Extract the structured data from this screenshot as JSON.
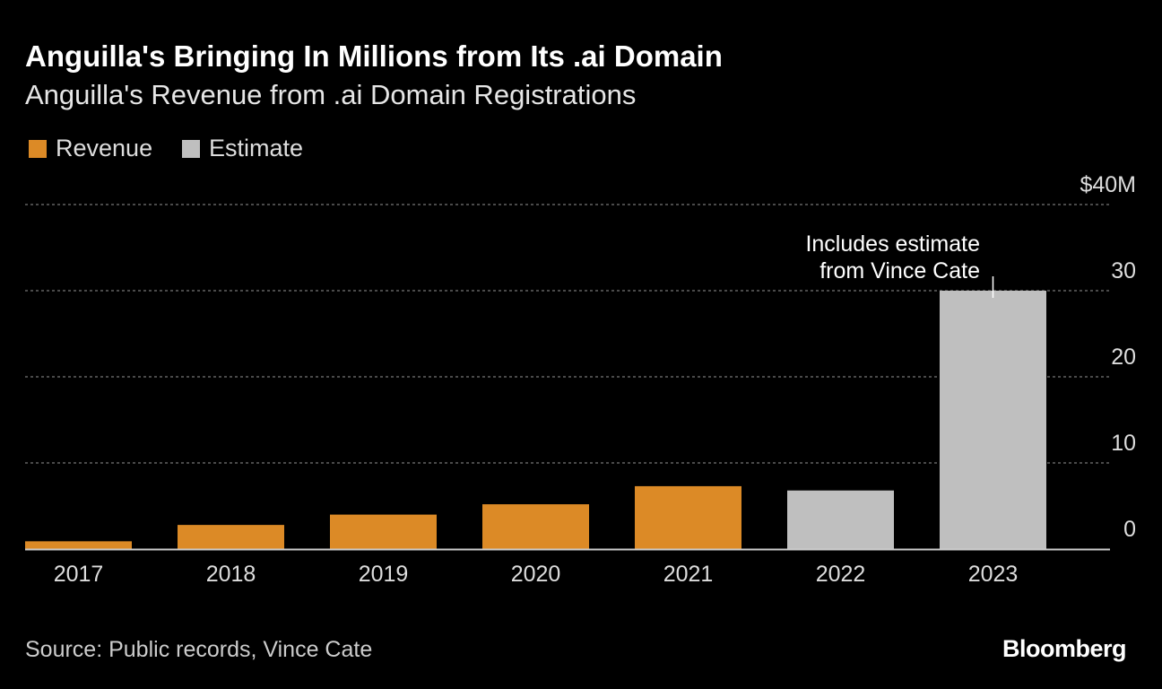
{
  "chart_data": {
    "type": "bar",
    "title": "Anguilla's Bringing In Millions from Its .ai Domain",
    "subtitle": "Anguilla's Revenue from .ai Domain Registrations",
    "categories": [
      "2017",
      "2018",
      "2019",
      "2020",
      "2021",
      "2022",
      "2023"
    ],
    "values": [
      0.9,
      2.8,
      4.0,
      5.2,
      7.3,
      6.8,
      30
    ],
    "series_of_bar": [
      "Revenue",
      "Revenue",
      "Revenue",
      "Revenue",
      "Revenue",
      "Estimate",
      "Estimate"
    ],
    "legend": [
      {
        "name": "Revenue",
        "color": "#dc8a26"
      },
      {
        "name": "Estimate",
        "color": "#bfbfbf"
      }
    ],
    "legend_placement": "top-left",
    "ylim": [
      0,
      40
    ],
    "yticks": [
      0,
      10,
      20,
      30,
      40
    ],
    "ytick_labels": [
      "0",
      "10",
      "20",
      "30",
      "$40M"
    ],
    "y_axis_side": "right",
    "grid": true,
    "annotation": {
      "text_line1": "Includes estimate",
      "text_line2": "from Vince Cate",
      "category": "2023"
    },
    "source": "Source: Public records, Vince Cate",
    "brand": "Bloomberg"
  }
}
